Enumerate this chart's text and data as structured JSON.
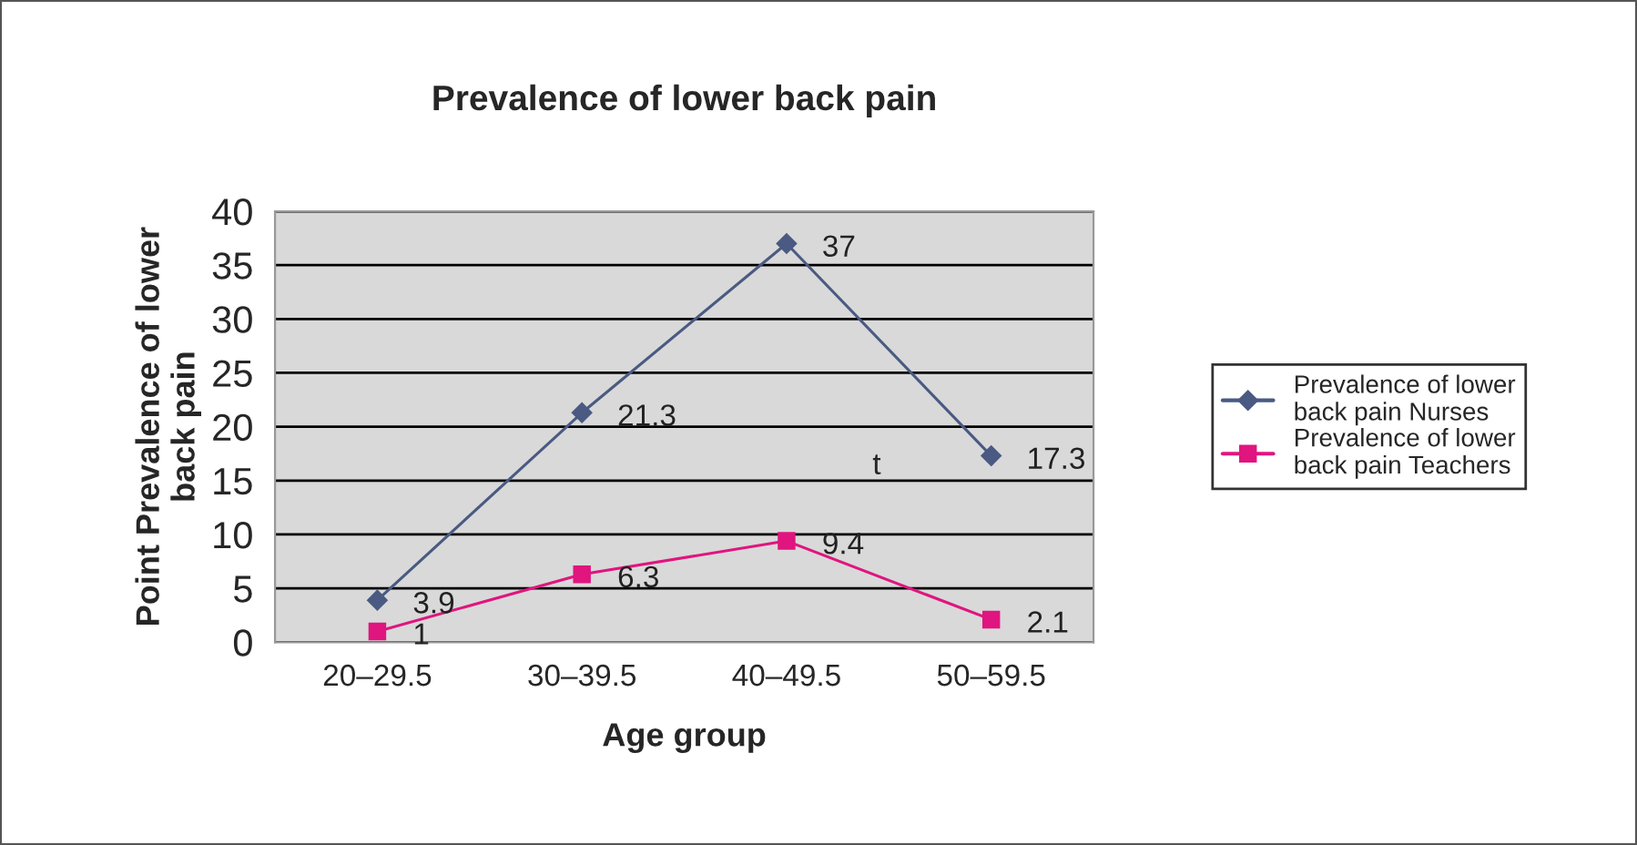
{
  "chart_data": {
    "type": "line",
    "title": "Prevalence of lower back pain",
    "xlabel": "Age group",
    "ylabel": "Point Prevalence of lower\nback pain",
    "categories": [
      "20–29.5",
      "30–39.5",
      "40–49.5",
      "50–59.5"
    ],
    "series": [
      {
        "name": "Prevalence of lower\nback pain Nurses",
        "color": "#4a5a82",
        "marker": "diamond",
        "values": [
          3.9,
          21.3,
          37,
          17.3
        ]
      },
      {
        "name": "Prevalence of lower\nback pain Teachers",
        "color": "#e0157f",
        "marker": "square",
        "values": [
          1,
          6.3,
          9.4,
          2.1
        ]
      }
    ],
    "ylim": [
      0,
      40
    ],
    "yticks": [
      0,
      5,
      10,
      15,
      20,
      25,
      30,
      35,
      40
    ],
    "grid": "y",
    "legend": "right",
    "data_labels": true,
    "line_style": "solid",
    "annotations": [
      "t"
    ]
  }
}
